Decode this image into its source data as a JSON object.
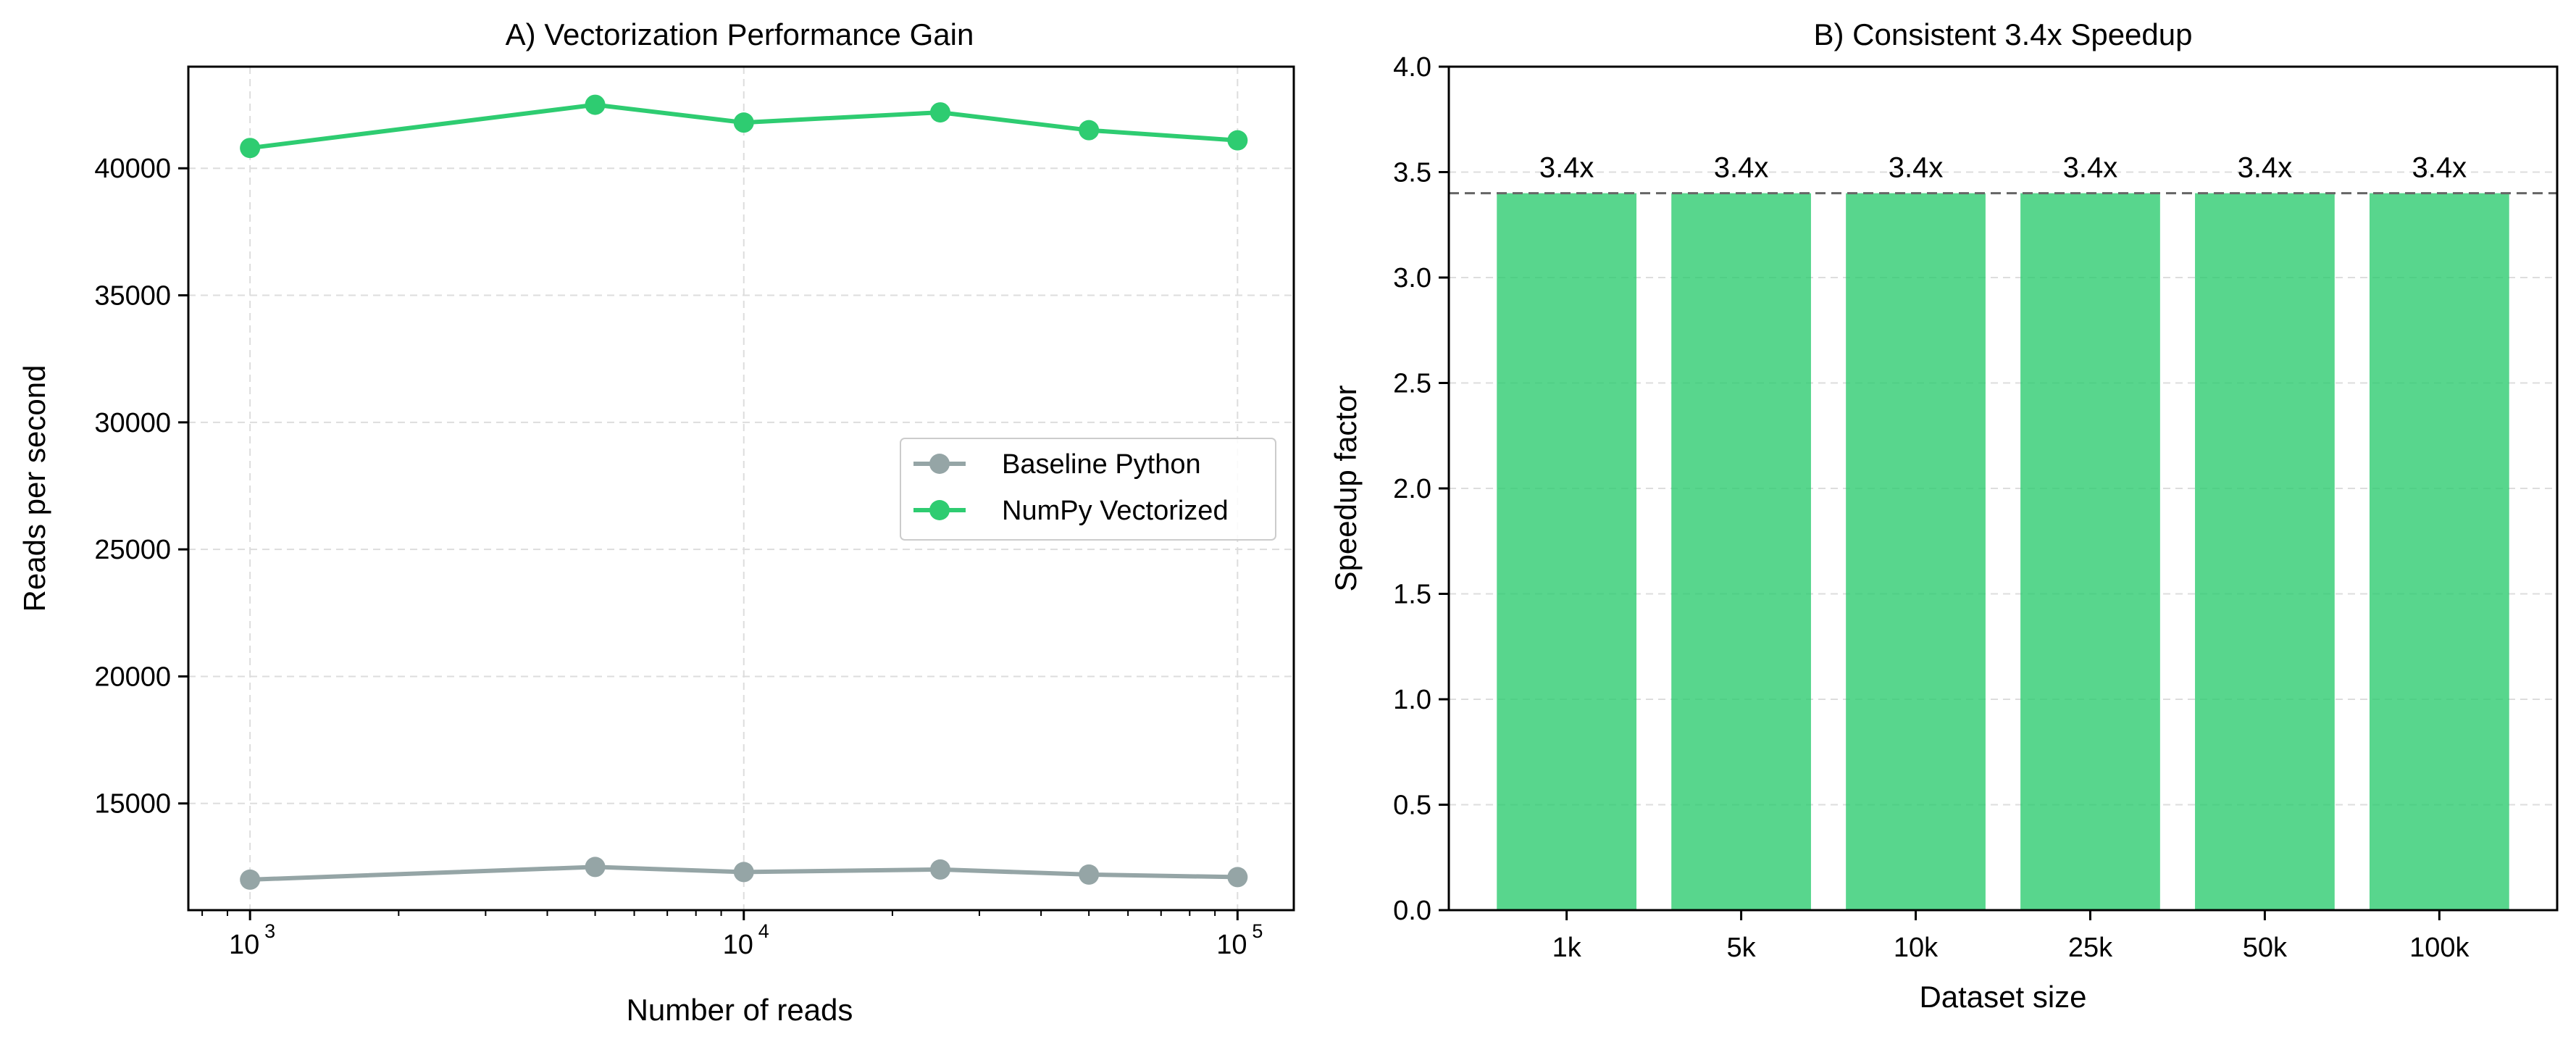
{
  "chart_data": [
    {
      "type": "line",
      "title": "A) Vectorization Performance Gain",
      "xlabel": "Number of reads",
      "ylabel": "Reads per second",
      "xscale": "log",
      "xlim": [
        750,
        130000
      ],
      "ylim": [
        10800,
        44000
      ],
      "x": [
        1000,
        5000,
        10000,
        25000,
        50000,
        100000
      ],
      "x_ticks": [
        {
          "base": "10",
          "exp": "3",
          "value": 1000
        },
        {
          "base": "10",
          "exp": "4",
          "value": 10000
        },
        {
          "base": "10",
          "exp": "5",
          "value": 100000
        }
      ],
      "y_ticks": [
        "15000",
        "20000",
        "25000",
        "30000",
        "35000",
        "40000"
      ],
      "grid": true,
      "legend_position": "center-right",
      "series": [
        {
          "name": "Baseline Python",
          "color": "#95a5a6",
          "values": [
            12000,
            12500,
            12300,
            12400,
            12200,
            12100
          ]
        },
        {
          "name": "NumPy Vectorized",
          "color": "#2ecc71",
          "values": [
            40800,
            42500,
            41800,
            42200,
            41500,
            41100
          ]
        }
      ]
    },
    {
      "type": "bar",
      "title": "B) Consistent 3.4x Speedup",
      "xlabel": "Dataset size",
      "ylabel": "Speedup factor",
      "categories": [
        "1k",
        "5k",
        "10k",
        "25k",
        "50k",
        "100k"
      ],
      "values": [
        3.4,
        3.4,
        3.4,
        3.4,
        3.4,
        3.4
      ],
      "value_labels": [
        "3.4x",
        "3.4x",
        "3.4x",
        "3.4x",
        "3.4x",
        "3.4x"
      ],
      "reference_line": 3.4,
      "ylim": [
        0,
        4.0
      ],
      "y_ticks": [
        "0.0",
        "0.5",
        "1.0",
        "1.5",
        "2.0",
        "2.5",
        "3.0",
        "3.5",
        "4.0"
      ],
      "grid": true,
      "bar_color": "#2ecc71"
    }
  ]
}
